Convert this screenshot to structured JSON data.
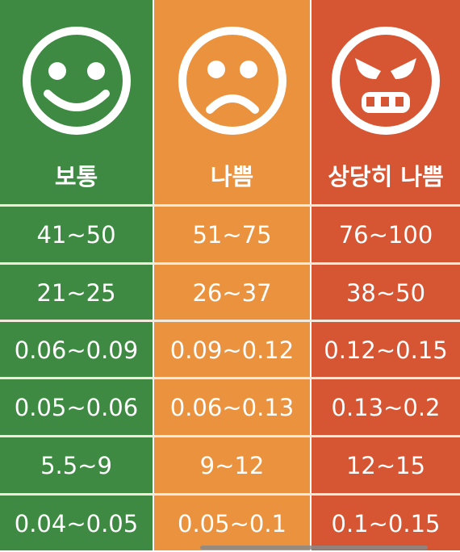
{
  "columns": [
    {
      "label": "보통",
      "color": "#3e8a43",
      "face": "smile-face-icon",
      "values": [
        "41~50",
        "21~25",
        "0.06~0.09",
        "0.05~0.06",
        "5.5~9",
        "0.04~0.05"
      ]
    },
    {
      "label": "나쁨",
      "color": "#ea923d",
      "face": "sad-face-icon",
      "values": [
        "51~75",
        "26~37",
        "0.09~0.12",
        "0.06~0.13",
        "9~12",
        "0.05~0.1"
      ]
    },
    {
      "label": "상당히 나쁨",
      "color": "#d65533",
      "face": "angry-face-icon",
      "values": [
        "76~100",
        "38~50",
        "0.12~0.15",
        "0.13~0.2",
        "12~15",
        "0.1~0.15"
      ]
    }
  ],
  "divider_color": "#f3e9dc"
}
